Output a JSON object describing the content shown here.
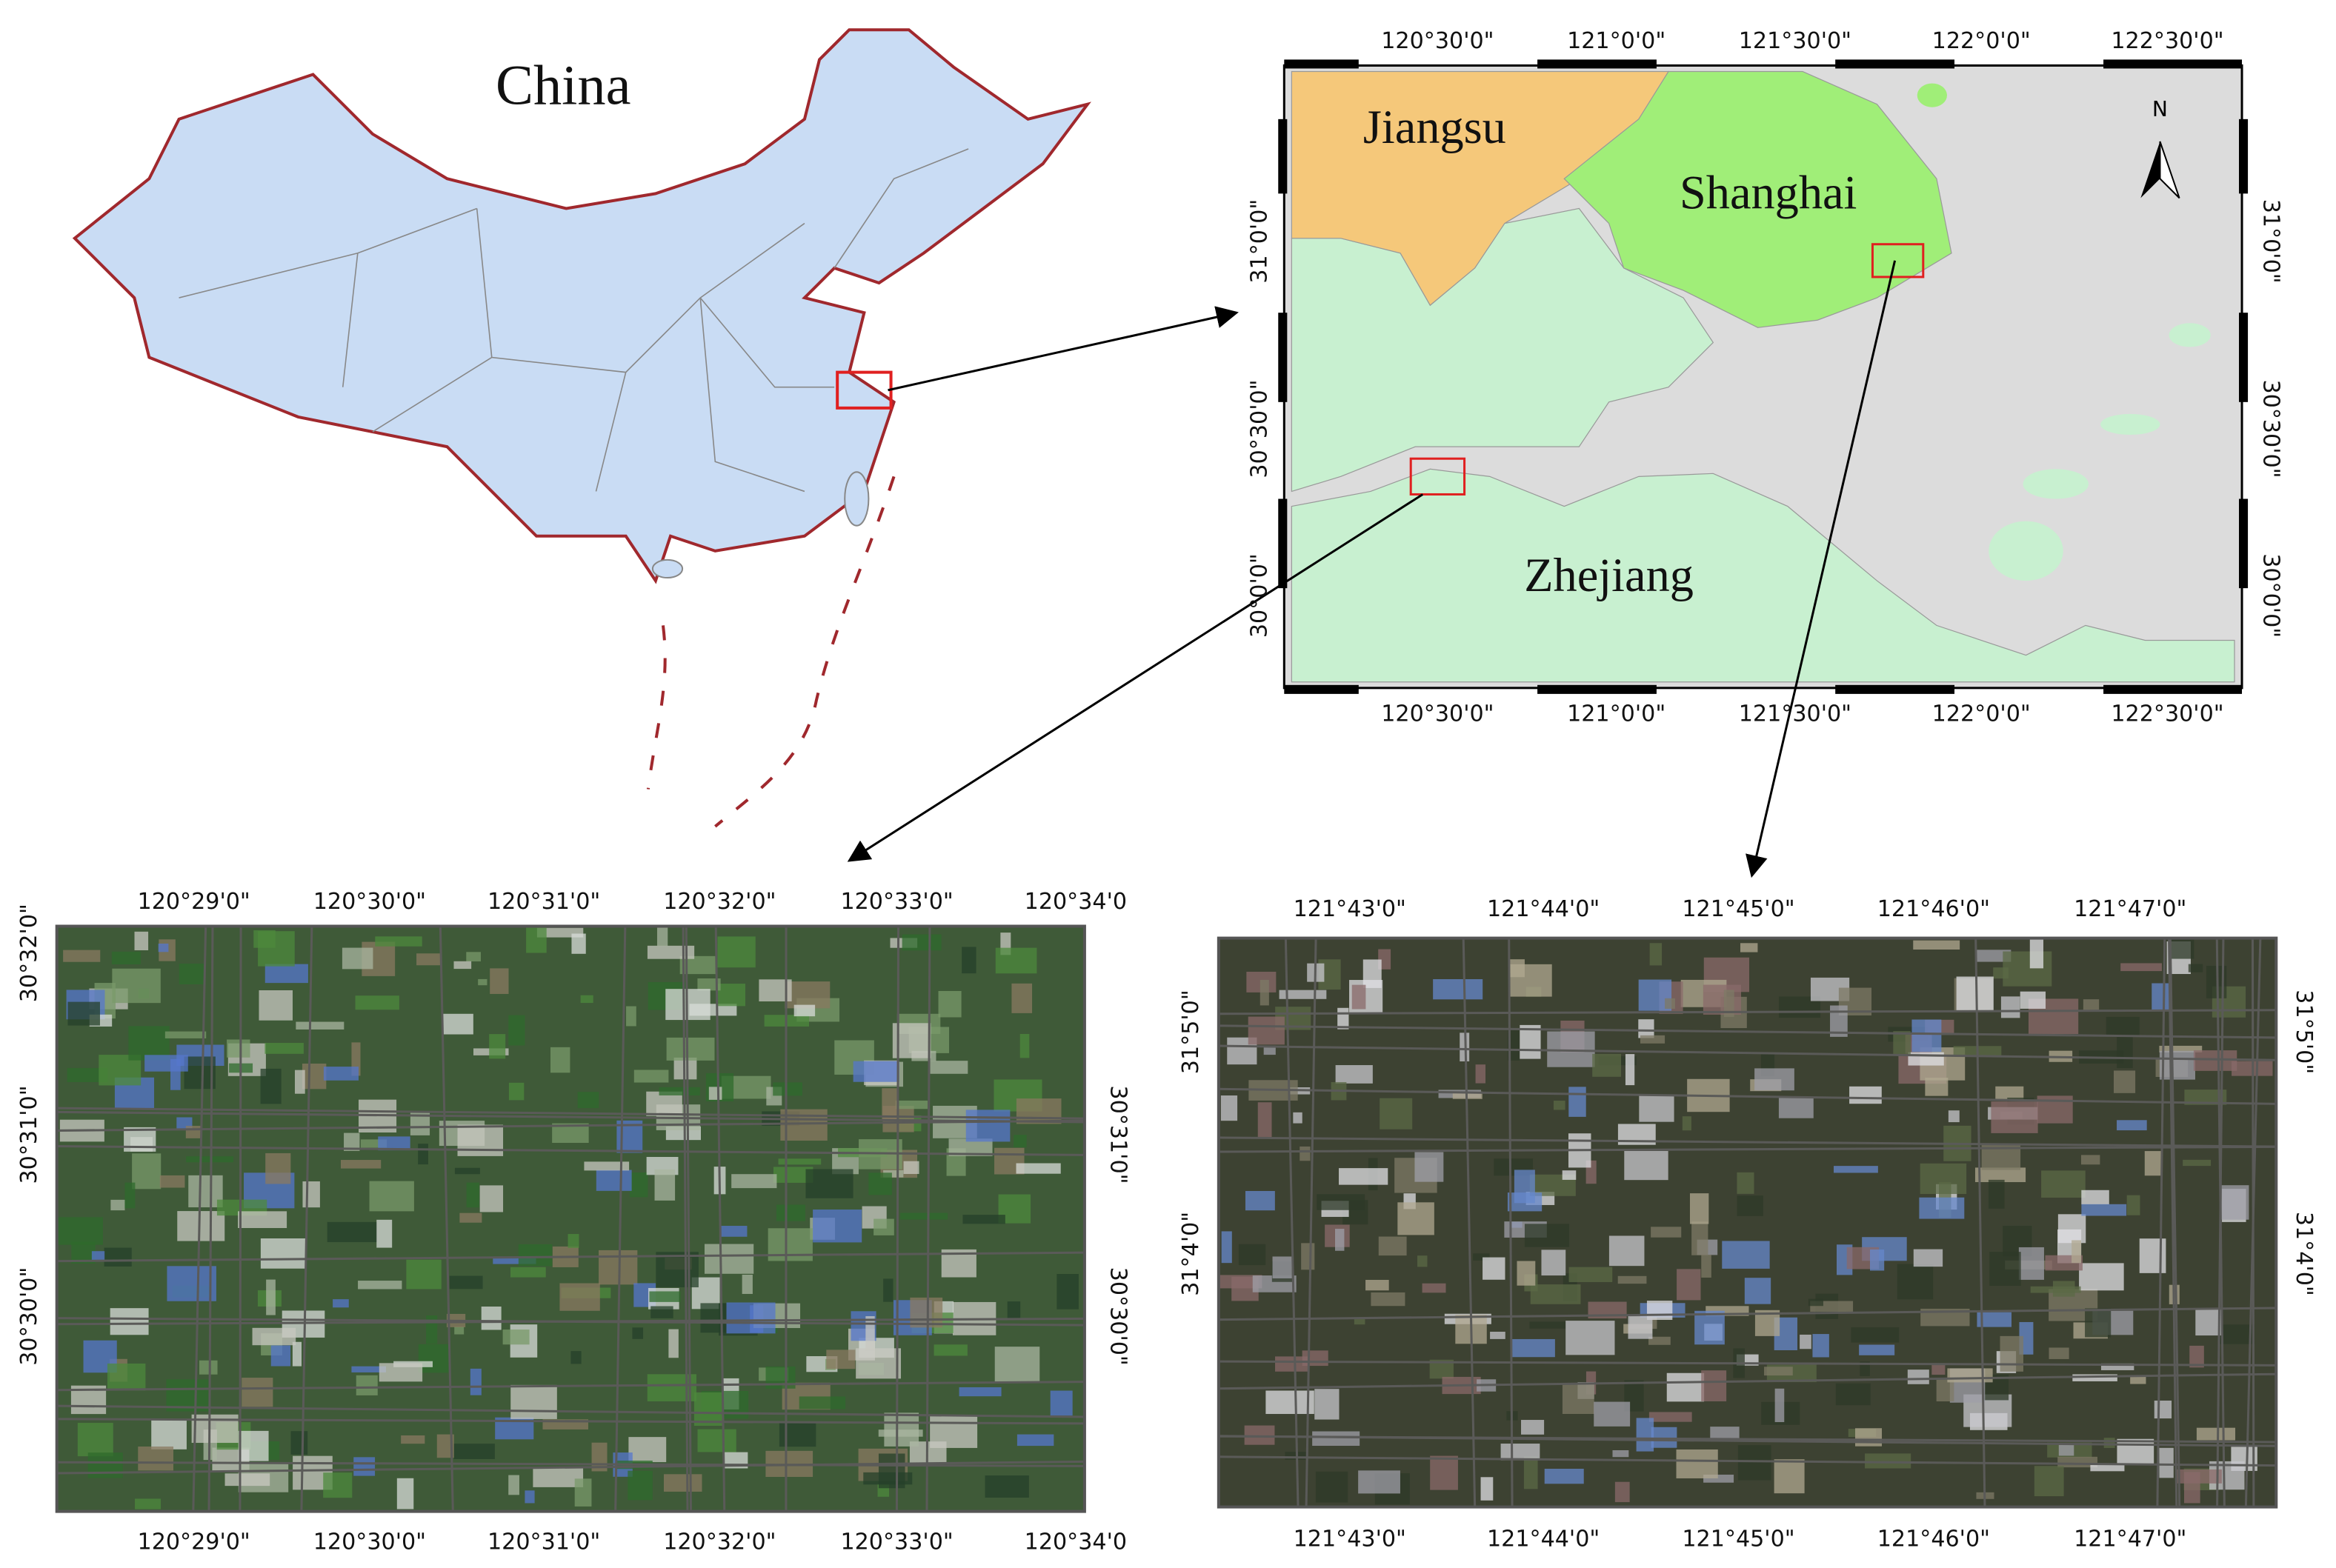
{
  "china_map": {
    "label": "China"
  },
  "regional_map": {
    "labels": {
      "jiangsu": "Jiangsu",
      "shanghai": "Shanghai",
      "zhejiang": "Zhejiang"
    },
    "north_arrow": "N",
    "top_ticks": [
      "120°30'0\"",
      "121°0'0\"",
      "121°30'0\"",
      "122°0'0\"",
      "122°30'0\""
    ],
    "bottom_ticks": [
      "120°30'0\"",
      "121°0'0\"",
      "121°30'0\"",
      "122°0'0\"",
      "122°30'0\""
    ],
    "left_ticks": [
      "31°0'0\"",
      "30°30'0\"",
      "30°0'0\""
    ],
    "right_ticks": [
      "31°0'0\"",
      "30°30'0\"",
      "30°0'0\""
    ]
  },
  "site_a": {
    "top_ticks": [
      "120°29'0\"",
      "120°30'0\"",
      "120°31'0\"",
      "120°32'0\"",
      "120°33'0\"",
      "120°34'0"
    ],
    "bottom_ticks": [
      "120°29'0\"",
      "120°30'0\"",
      "120°31'0\"",
      "120°32'0\"",
      "120°33'0\"",
      "120°34'0"
    ],
    "left_ticks": [
      "30°32'0\"",
      "30°31'0\"",
      "30°30'0\""
    ],
    "right_ticks": [
      "30°31'0\"",
      "30°30'0\""
    ]
  },
  "site_b": {
    "top_ticks": [
      "121°43'0\"",
      "121°44'0\"",
      "121°45'0\"",
      "121°46'0\"",
      "121°47'0\""
    ],
    "bottom_ticks": [
      "121°43'0\"",
      "121°44'0\"",
      "121°45'0\"",
      "121°46'0\"",
      "121°47'0\""
    ],
    "left_ticks": [
      "31°5'0\"",
      "31°4'0\""
    ],
    "right_ticks": [
      "31°5'0\"",
      "31°4'0\""
    ]
  }
}
